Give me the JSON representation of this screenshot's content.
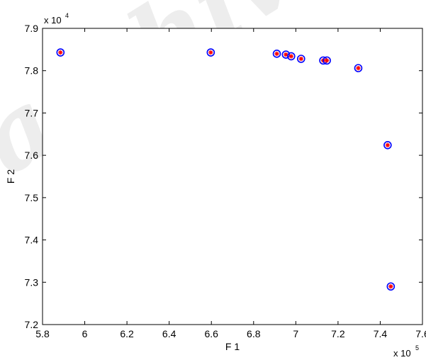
{
  "watermark": "archive",
  "chart_data": {
    "type": "scatter",
    "title": "",
    "xlabel": "F 1",
    "ylabel": "F 2",
    "x_multiplier_label": "x 10",
    "x_multiplier_exp": "5",
    "y_multiplier_label": "x 10",
    "y_multiplier_exp": "4",
    "xlim": [
      5.8,
      7.6
    ],
    "ylim": [
      7.2,
      7.9
    ],
    "x_ticks": [
      "5.8",
      "6",
      "6.2",
      "6.4",
      "6.6",
      "6.8",
      "7",
      "7.2",
      "7.4",
      "7.6"
    ],
    "y_ticks": [
      "7.2",
      "7.3",
      "7.4",
      "7.5",
      "7.6",
      "7.7",
      "7.8",
      "7.9"
    ],
    "grid": false,
    "marker": {
      "style": "circle-with-asterisk",
      "edge_color": "#0000ff",
      "center_color": "#ff0000"
    },
    "points": [
      {
        "x": 5.885,
        "y": 7.843
      },
      {
        "x": 6.597,
        "y": 7.843
      },
      {
        "x": 6.91,
        "y": 7.84
      },
      {
        "x": 6.953,
        "y": 7.838
      },
      {
        "x": 6.978,
        "y": 7.834
      },
      {
        "x": 7.025,
        "y": 7.828
      },
      {
        "x": 7.13,
        "y": 7.824
      },
      {
        "x": 7.147,
        "y": 7.824
      },
      {
        "x": 7.296,
        "y": 7.806
      },
      {
        "x": 7.435,
        "y": 7.624
      },
      {
        "x": 7.45,
        "y": 7.29
      }
    ]
  }
}
